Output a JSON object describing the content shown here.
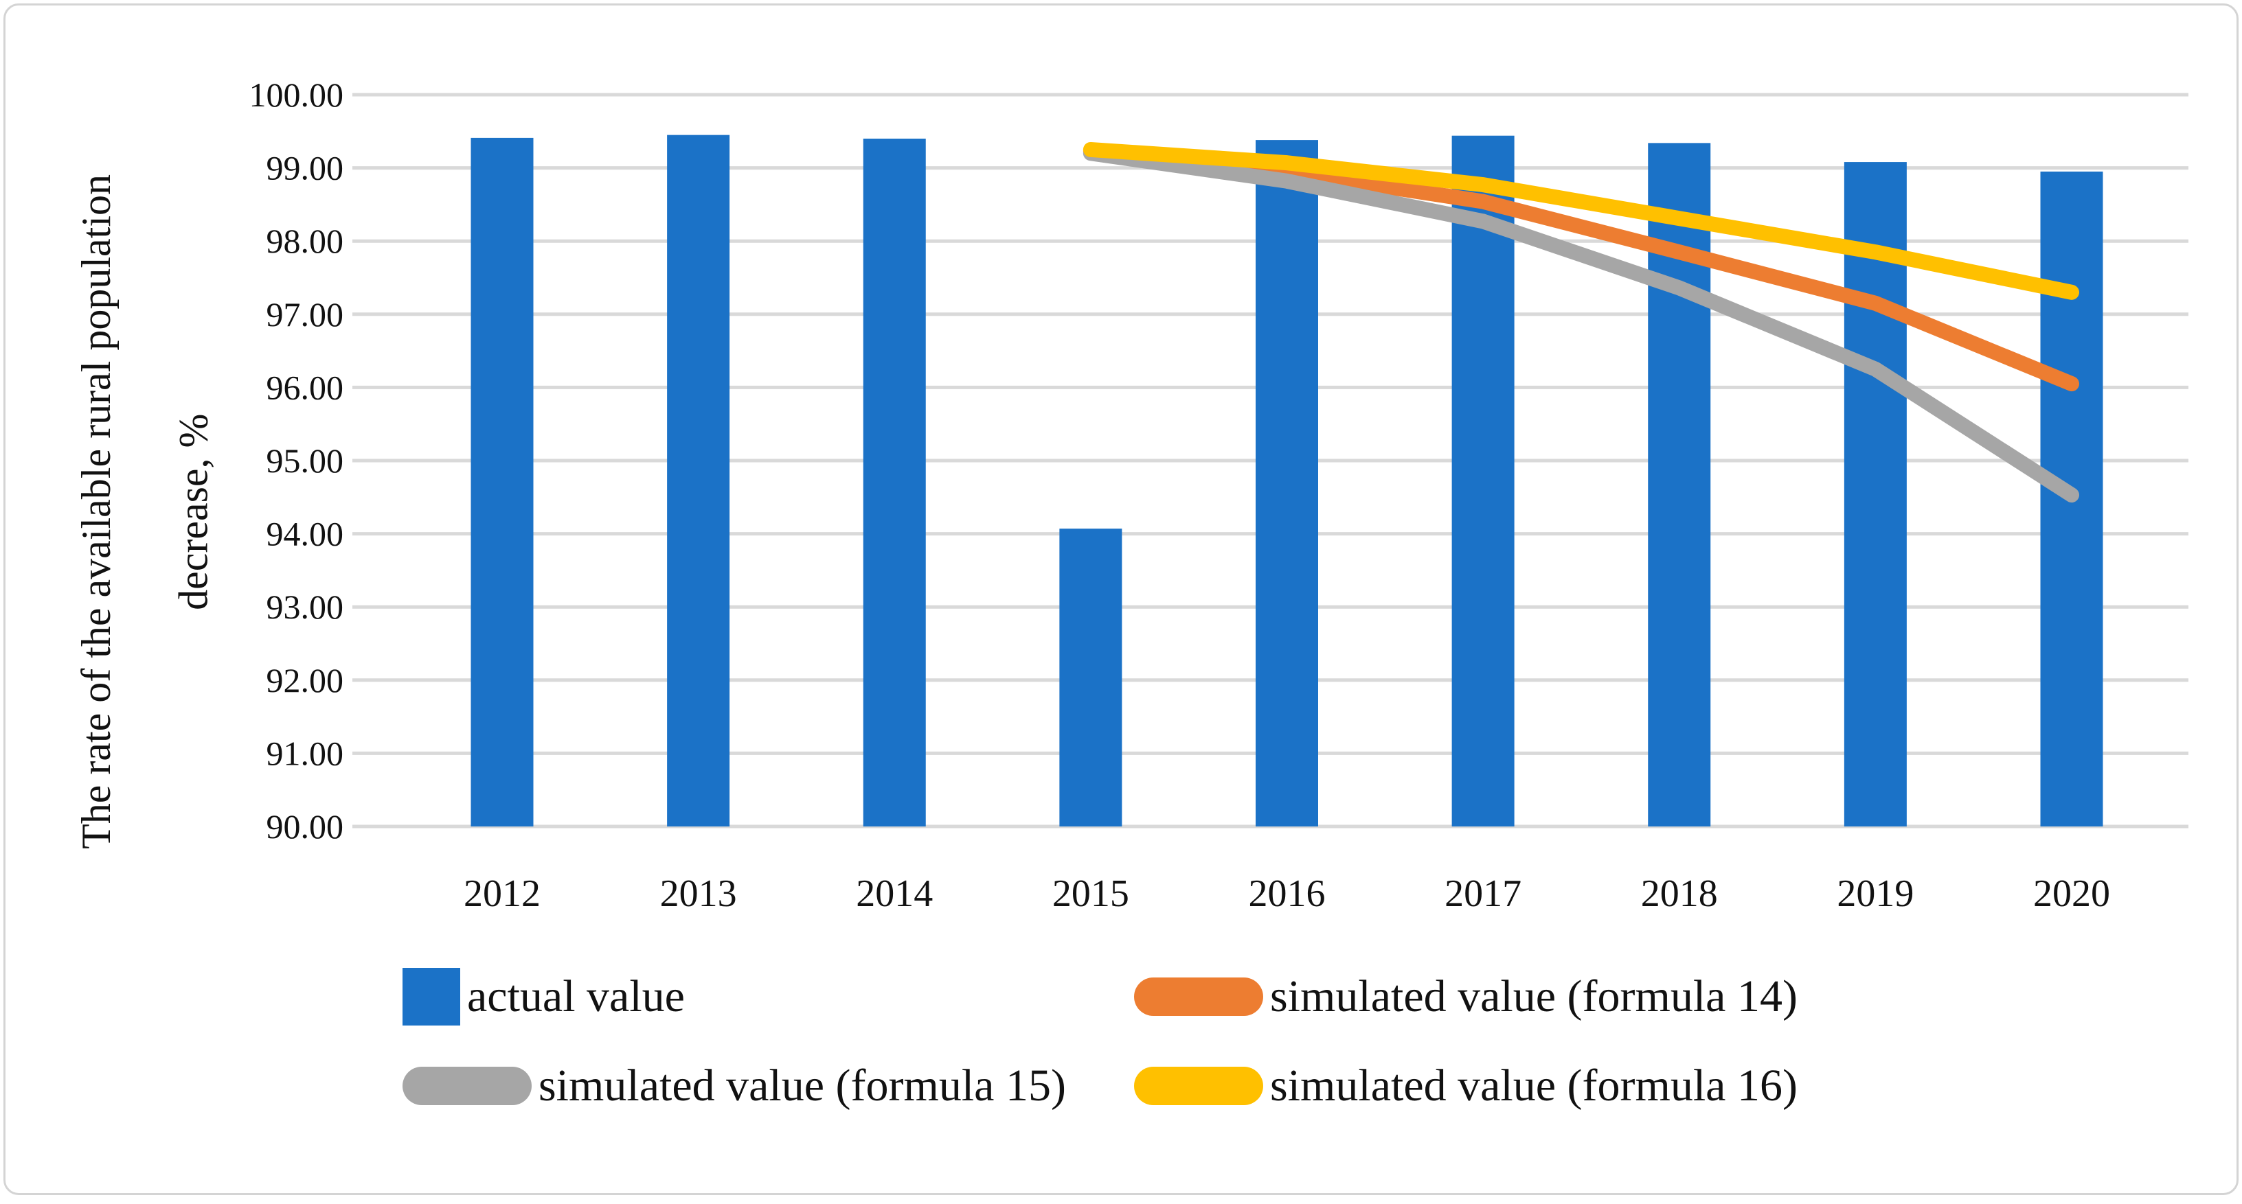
{
  "figure": {
    "y_axis_title_line1": "The rate of the available rural population",
    "y_axis_title_line2": "decrease, %"
  },
  "chart_data": {
    "type": "bar",
    "title": "",
    "xlabel": "",
    "ylabel": "The rate of the available rural population decrease, %",
    "categories": [
      "2012",
      "2013",
      "2014",
      "2015",
      "2016",
      "2017",
      "2018",
      "2019",
      "2020"
    ],
    "ylim": [
      90,
      100
    ],
    "y_ticks": [
      100,
      99,
      98,
      97,
      96,
      95,
      94,
      93,
      92,
      91,
      90
    ],
    "y_tick_labels": [
      "100.00",
      "99.00",
      "98.00",
      "97.00",
      "96.00",
      "95.00",
      "94.00",
      "93.00",
      "92.00",
      "91.00",
      "90.00"
    ],
    "grid": "horizontal",
    "gridline_color": "#d9d9d9",
    "legend_position": "bottom",
    "bar_series": {
      "name": "actual value",
      "color": "#1b72c7",
      "values": [
        99.41,
        99.45,
        99.4,
        94.07,
        99.38,
        99.44,
        99.34,
        99.08,
        98.95
      ]
    },
    "line_series": [
      {
        "name": "simulated value (formula 14)",
        "color": "#ed7d31",
        "start_category": "2015",
        "start_index": 3,
        "values": [
          99.23,
          98.95,
          98.54,
          97.85,
          97.15,
          96.05
        ]
      },
      {
        "name": "simulated value (formula 15)",
        "color": "#a6a6a6",
        "start_category": "2015",
        "start_index": 3,
        "values": [
          99.2,
          98.82,
          98.27,
          97.36,
          96.25,
          94.53
        ]
      },
      {
        "name": "simulated value (formula 16)",
        "color": "#ffc000",
        "start_category": "2015",
        "start_index": 3,
        "values": [
          99.25,
          99.07,
          98.77,
          98.31,
          97.85,
          97.3
        ]
      }
    ]
  },
  "legend": {
    "items": [
      {
        "label": "actual value",
        "swatch": "square",
        "color": "#1b72c7"
      },
      {
        "label": "simulated value (formula 14)",
        "swatch": "line",
        "color": "#ed7d31"
      },
      {
        "label": "simulated value (formula 15)",
        "swatch": "line",
        "color": "#a6a6a6"
      },
      {
        "label": "simulated value (formula 16)",
        "swatch": "line",
        "color": "#ffc000"
      }
    ]
  }
}
